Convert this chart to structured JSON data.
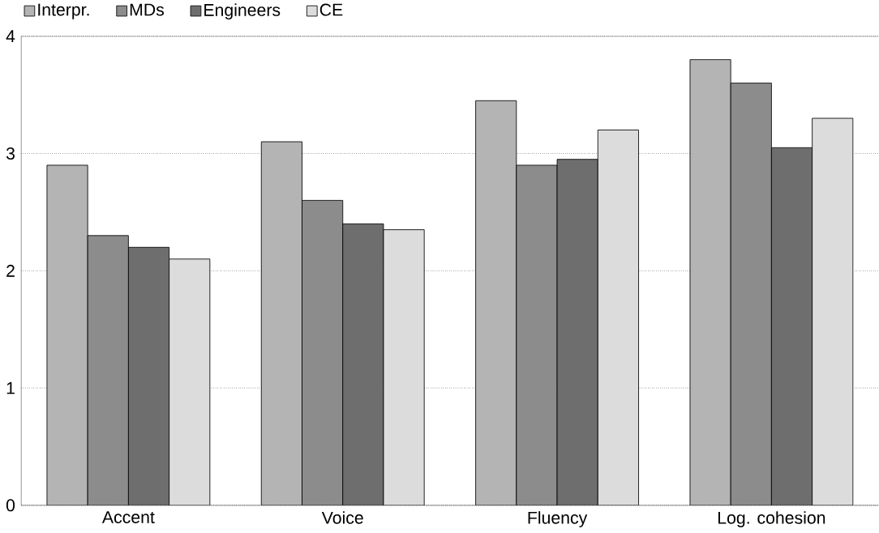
{
  "chart_data": {
    "type": "bar",
    "categories": [
      "Accent",
      "Voice",
      "Fluency",
      "Log. cohesion"
    ],
    "series": [
      {
        "name": "Interpr.",
        "color": "#b4b4b4",
        "values": [
          2.9,
          3.1,
          3.45,
          3.8
        ]
      },
      {
        "name": "MDs",
        "color": "#8c8c8c",
        "values": [
          2.3,
          2.6,
          2.9,
          3.6
        ]
      },
      {
        "name": "Engineers",
        "color": "#6e6e6e",
        "values": [
          2.2,
          2.4,
          2.95,
          3.05
        ]
      },
      {
        "name": "CE",
        "color": "#dcdcdc",
        "values": [
          2.1,
          2.35,
          3.2,
          3.3
        ]
      }
    ],
    "ylim": [
      0,
      4
    ],
    "yticks": [
      0,
      1,
      2,
      3,
      4
    ],
    "grid": "y",
    "legend": "top"
  }
}
